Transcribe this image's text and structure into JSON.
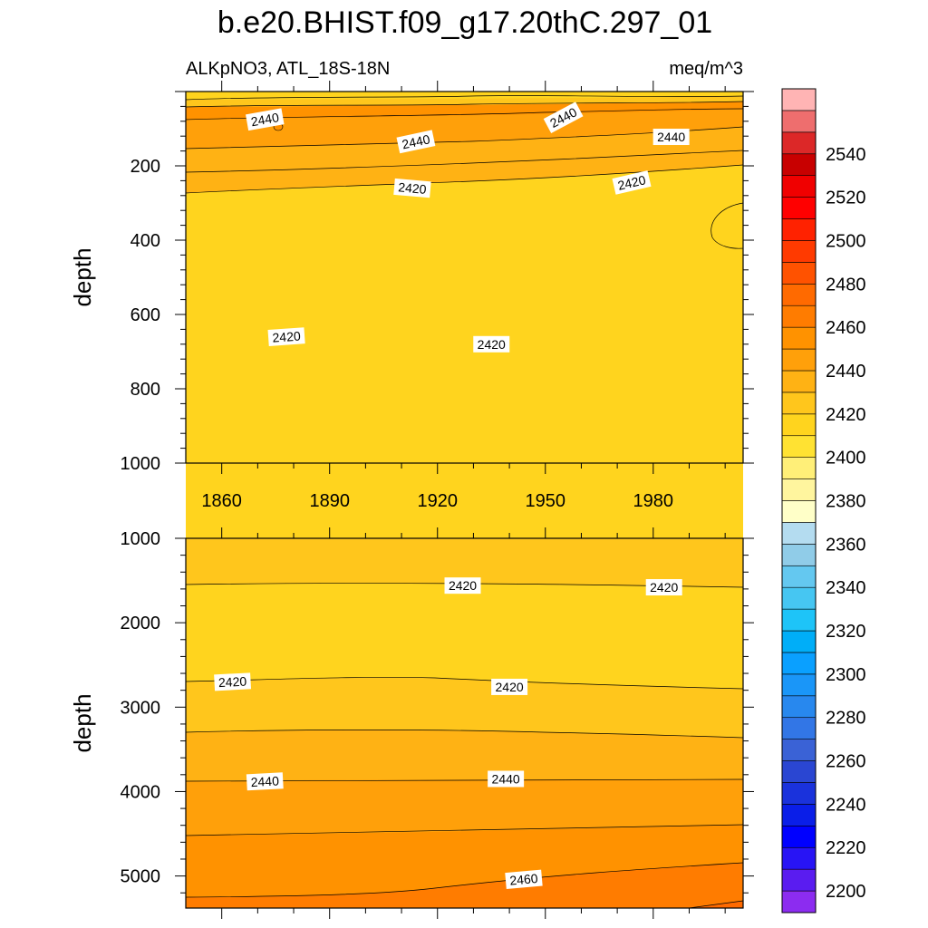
{
  "chart_data": {
    "type": "contour",
    "title": "b.e20.BHIST.f09_g17.20thC.297_01",
    "variable_label": "ALKpNO3, ATL_18S-18N",
    "units": "meq/m^3",
    "colorbar": {
      "levels": [
        2190,
        2200,
        2210,
        2220,
        2230,
        2240,
        2250,
        2260,
        2270,
        2280,
        2290,
        2300,
        2310,
        2320,
        2330,
        2340,
        2350,
        2360,
        2370,
        2380,
        2390,
        2400,
        2410,
        2420,
        2430,
        2440,
        2450,
        2460,
        2470,
        2480,
        2490,
        2500,
        2510,
        2520,
        2530,
        2540,
        2550,
        2560
      ],
      "colors": [
        "#8c2cf0",
        "#5a1cf0",
        "#2814f5",
        "#0000ff",
        "#0a1ee8",
        "#1a32dc",
        "#2a46d2",
        "#3a62d6",
        "#3276e6",
        "#2888ee",
        "#1a96f8",
        "#0aa0ff",
        "#00aef8",
        "#1ec4f8",
        "#46c6f2",
        "#64c8f0",
        "#90cce8",
        "#b4dcf0",
        "#ffffc8",
        "#fff59e",
        "#ffef78",
        "#ffe232",
        "#ffd41e",
        "#ffc61c",
        "#ffb214",
        "#ffa00a",
        "#ff9200",
        "#ff7c00",
        "#ff6a00",
        "#ff5200",
        "#ff3a00",
        "#ff2200",
        "#ff0000",
        "#f00000",
        "#c80000",
        "#dc2828",
        "#ee6e6e",
        "#ffb4b4"
      ],
      "tick_labels": [
        "2200",
        "2220",
        "2240",
        "2260",
        "2280",
        "2300",
        "2320",
        "2340",
        "2360",
        "2380",
        "2400",
        "2420",
        "2440",
        "2460",
        "2480",
        "2500",
        "2520",
        "2540"
      ]
    },
    "panels": [
      {
        "name": "upper",
        "ylabel": "depth",
        "xlim": [
          1850,
          2005
        ],
        "ylim": [
          1000,
          0
        ],
        "x_ticks": [
          "1860",
          "1890",
          "1920",
          "1950",
          "1980"
        ],
        "y_ticks": [
          "200",
          "400",
          "600",
          "800",
          "1000"
        ],
        "contour_labels": [
          {
            "text": "2440",
            "x": 1872,
            "y": 75,
            "angle": -10
          },
          {
            "text": "2440",
            "x": 1955,
            "y": 70,
            "angle": -28
          },
          {
            "text": "2440",
            "x": 1914,
            "y": 135,
            "angle": -12
          },
          {
            "text": "2440",
            "x": 1985,
            "y": 122,
            "angle": 0
          },
          {
            "text": "2420",
            "x": 1913,
            "y": 260,
            "angle": 5
          },
          {
            "text": "2420",
            "x": 1974,
            "y": 245,
            "angle": -13
          },
          {
            "text": "2420",
            "x": 1878,
            "y": 660,
            "angle": -4
          },
          {
            "text": "2420",
            "x": 1935,
            "y": 680,
            "angle": 0
          }
        ]
      },
      {
        "name": "lower",
        "ylabel": "depth",
        "xlim": [
          1850,
          2005
        ],
        "ylim": [
          5380,
          1000
        ],
        "x_ticks": [],
        "y_ticks": [
          "1000",
          "2000",
          "3000",
          "4000",
          "5000"
        ],
        "contour_labels": [
          {
            "text": "2420",
            "x": 1927,
            "y": 1560,
            "angle": 0
          },
          {
            "text": "2420",
            "x": 1983,
            "y": 1580,
            "angle": 0
          },
          {
            "text": "2420",
            "x": 1863,
            "y": 2700,
            "angle": -3
          },
          {
            "text": "2420",
            "x": 1940,
            "y": 2760,
            "angle": 0
          },
          {
            "text": "2440",
            "x": 1872,
            "y": 3880,
            "angle": -3
          },
          {
            "text": "2440",
            "x": 1939,
            "y": 3850,
            "angle": 0
          },
          {
            "text": "2460",
            "x": 1944,
            "y": 5040,
            "angle": -5
          }
        ]
      }
    ]
  }
}
